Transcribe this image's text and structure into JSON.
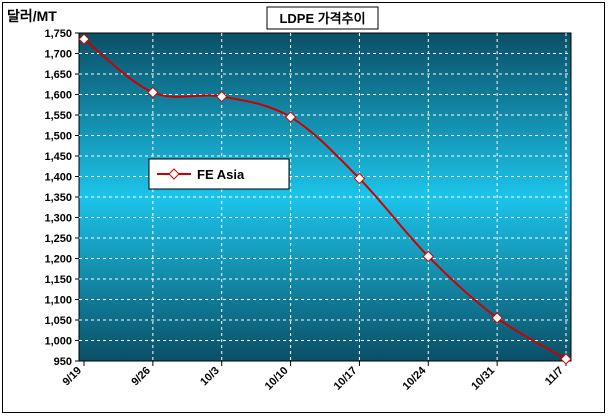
{
  "chart_data": {
    "type": "line",
    "title": "LDPE 가격추이",
    "unit_label": "달러/MT",
    "categories": [
      "9/19",
      "9/26",
      "10/3",
      "10/10",
      "10/17",
      "10/24",
      "10/31",
      "11/7"
    ],
    "series": [
      {
        "name": "FE Asia",
        "values": [
          1735,
          1605,
          1595,
          1545,
          1395,
          1205,
          1055,
          955
        ],
        "color": "#cc0000"
      }
    ],
    "ylim": [
      950,
      1750
    ],
    "yticks": [
      "950",
      "1,000",
      "1,050",
      "1,100",
      "1,150",
      "1,200",
      "1,250",
      "1,300",
      "1,350",
      "1,400",
      "1,450",
      "1,500",
      "1,550",
      "1,600",
      "1,650",
      "1,700",
      "1,750"
    ],
    "grid": true,
    "legend_position": "middle-left",
    "colors": {
      "plot_top": "#0a4f66",
      "plot_middle": "#1cc4ea",
      "plot_bottom": "#0a4f66",
      "line": "#cc0000",
      "marker_fill": "#ffffff"
    }
  }
}
